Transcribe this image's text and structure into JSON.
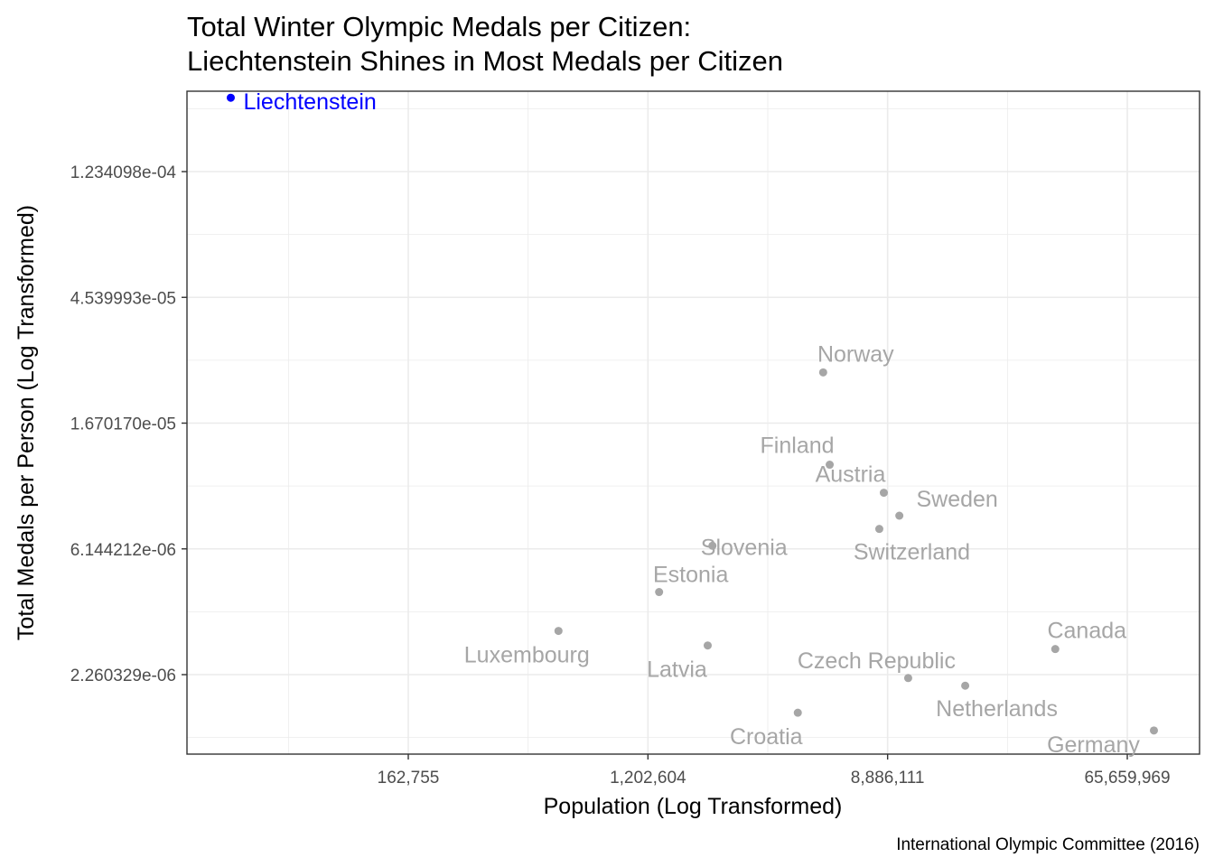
{
  "chart_data": {
    "type": "scatter",
    "title": "Total Winter Olympic Medals per Citizen:",
    "subtitle": "Liechtenstein Shines in Most Medals per Citizen",
    "xlabel": "Population (Log Transformed)",
    "ylabel": "Total Medals per Person (Log Transformed)",
    "caption": "International Olympic Committee (2016)",
    "x_scale": "log",
    "y_scale": "log",
    "xlim": [
      22026,
      90000000
    ],
    "ylim": [
      1.1e-06,
      0.00035
    ],
    "x_ticks": [
      162755,
      1202604,
      8886111,
      65659969
    ],
    "x_tick_labels": [
      "162,755",
      "1,202,604",
      "8,886,111",
      "65,659,969"
    ],
    "y_ticks": [
      2.260329e-06,
      6.144212e-06,
      1.67017e-05,
      4.539993e-05,
      0.0001234098
    ],
    "y_tick_labels": [
      "2.260329e-06",
      "6.144212e-06",
      "1.670170e-05",
      "4.539993e-05",
      "1.234098e-04"
    ],
    "grid": true,
    "highlight_color": "#0000ff",
    "point_color": "#a6a6a6",
    "points": [
      {
        "label": "Liechtenstein",
        "x": 37000,
        "y": 0.000222,
        "highlight": true
      },
      {
        "label": "Norway",
        "x": 5190000,
        "y": 2.5e-05
      },
      {
        "label": "Finland",
        "x": 5480000,
        "y": 1.2e-05
      },
      {
        "label": "Austria",
        "x": 8610000,
        "y": 9.6e-06
      },
      {
        "label": "Sweden",
        "x": 9800000,
        "y": 8e-06
      },
      {
        "label": "Switzerland",
        "x": 8290000,
        "y": 7.2e-06
      },
      {
        "label": "Slovenia",
        "x": 2060000,
        "y": 6.3e-06
      },
      {
        "label": "Estonia",
        "x": 1320000,
        "y": 4.36e-06
      },
      {
        "label": "Luxembourg",
        "x": 570000,
        "y": 3.2e-06
      },
      {
        "label": "Latvia",
        "x": 1980000,
        "y": 2.85e-06
      },
      {
        "label": "Canada",
        "x": 36000000,
        "y": 2.77e-06
      },
      {
        "label": "Czech Republic",
        "x": 10550000,
        "y": 2.2e-06
      },
      {
        "label": "Netherlands",
        "x": 16980000,
        "y": 2.07e-06
      },
      {
        "label": "Croatia",
        "x": 4200000,
        "y": 1.67e-06
      },
      {
        "label": "Germany",
        "x": 82000000,
        "y": 1.45e-06
      }
    ]
  }
}
